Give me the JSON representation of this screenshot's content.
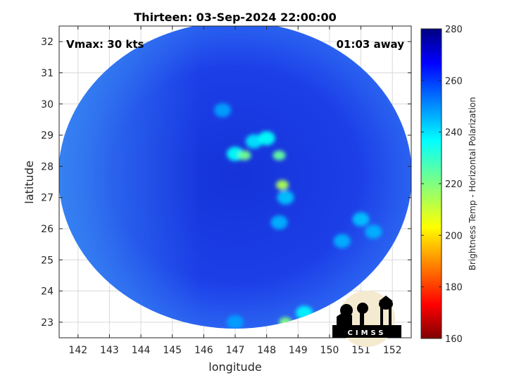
{
  "chart_data": {
    "type": "heatmap",
    "title": "Thirteen: 03-Sep-2024 22:00:00",
    "xlabel": "longitude",
    "ylabel": "latitude",
    "xlim": [
      141.4,
      152.6
    ],
    "ylim": [
      22.5,
      32.5
    ],
    "x_ticks": [
      142,
      143,
      144,
      145,
      146,
      147,
      148,
      149,
      150,
      151,
      152
    ],
    "y_ticks": [
      23,
      24,
      25,
      26,
      27,
      28,
      29,
      30,
      31,
      32
    ],
    "grid": true,
    "annotations": {
      "top_left": "Vmax: 30 kts",
      "top_right": "01:03 away"
    },
    "colorbar": {
      "label": "Brightness Temp - Horizontal Polarization",
      "range": [
        160,
        280
      ],
      "ticks": [
        280,
        260,
        240,
        220,
        200,
        180,
        160
      ],
      "colormap": "jet"
    },
    "field": {
      "background_value": 262,
      "features": [
        {
          "lon": 147.0,
          "lat": 28.4,
          "value": 236
        },
        {
          "lon": 147.3,
          "lat": 28.35,
          "value": 222
        },
        {
          "lon": 147.6,
          "lat": 28.8,
          "value": 240
        },
        {
          "lon": 148.0,
          "lat": 28.9,
          "value": 236
        },
        {
          "lon": 148.4,
          "lat": 28.35,
          "value": 224
        },
        {
          "lon": 148.5,
          "lat": 27.4,
          "value": 214
        },
        {
          "lon": 148.6,
          "lat": 27.0,
          "value": 244
        },
        {
          "lon": 148.4,
          "lat": 26.2,
          "value": 246
        },
        {
          "lon": 146.6,
          "lat": 29.8,
          "value": 248
        },
        {
          "lon": 149.2,
          "lat": 23.3,
          "value": 238
        },
        {
          "lon": 148.6,
          "lat": 23.0,
          "value": 220
        },
        {
          "lon": 150.4,
          "lat": 25.6,
          "value": 246
        },
        {
          "lon": 151.0,
          "lat": 26.3,
          "value": 244
        },
        {
          "lon": 151.4,
          "lat": 25.9,
          "value": 246
        },
        {
          "lon": 147.0,
          "lat": 23.0,
          "value": 248
        }
      ]
    }
  },
  "logo": {
    "text": "CIMSS",
    "icon": "cimss-logo-icon"
  }
}
